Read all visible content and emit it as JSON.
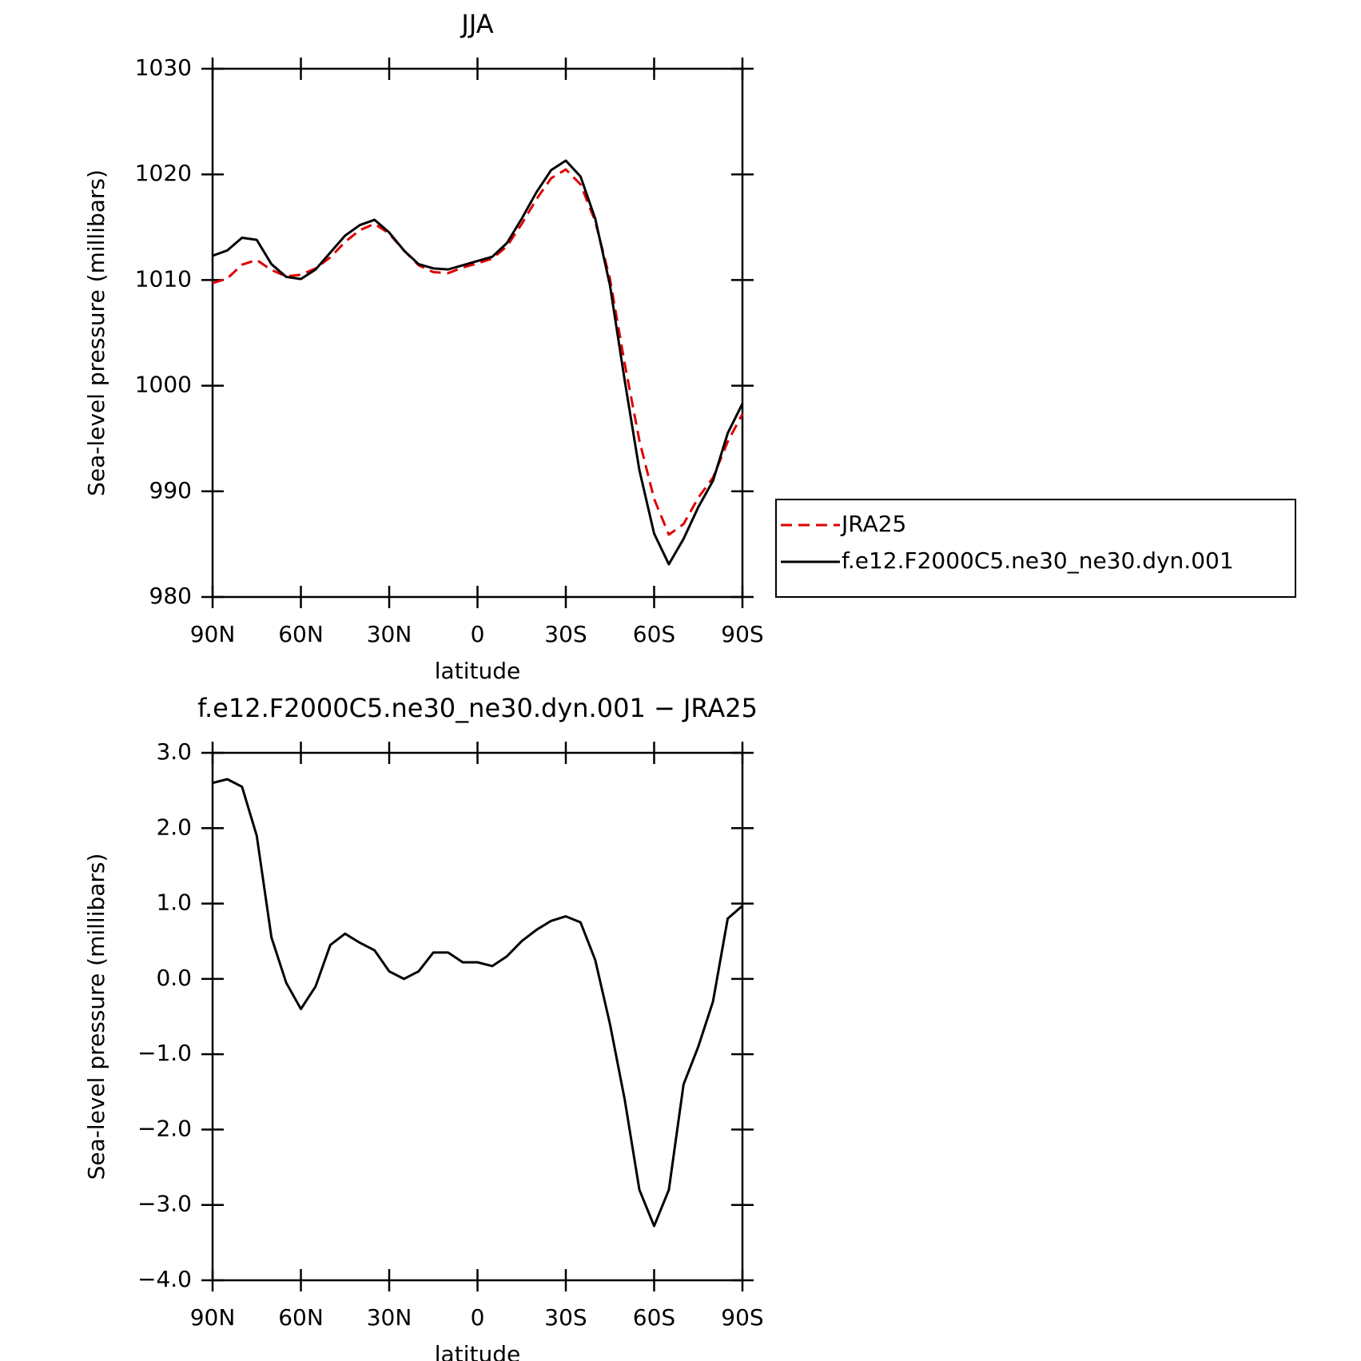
{
  "chart_data": [
    {
      "type": "line",
      "title": "JJA",
      "xlabel": "latitude",
      "ylabel": "Sea-level pressure (millibars)",
      "x": [
        90,
        85,
        80,
        75,
        70,
        65,
        60,
        55,
        50,
        45,
        40,
        35,
        30,
        25,
        20,
        15,
        10,
        5,
        0,
        -5,
        -10,
        -15,
        -20,
        -25,
        -30,
        -35,
        -40,
        -45,
        -50,
        -55,
        -60,
        -65,
        -70,
        -75,
        -80,
        -85,
        -90
      ],
      "xlim": [
        90,
        -90
      ],
      "xticks": [
        {
          "value": 90,
          "label": "90N"
        },
        {
          "value": 60,
          "label": "60N"
        },
        {
          "value": 30,
          "label": "30N"
        },
        0,
        {
          "value": -30,
          "label": "30S"
        },
        {
          "value": -60,
          "label": "60S"
        },
        {
          "value": -90,
          "label": "90S"
        }
      ],
      "ylim": [
        980,
        1030
      ],
      "yticks": [
        980,
        990,
        1000,
        1010,
        1020,
        1030
      ],
      "legend": "right",
      "series": [
        {
          "name": "JRA25",
          "color": "#e00000",
          "style": "dashed",
          "values": [
            1009.7,
            1010.15,
            1011.45,
            1011.9,
            1010.95,
            1010.35,
            1010.5,
            1011.1,
            1012.15,
            1013.6,
            1014.72,
            1015.32,
            1014.4,
            1012.8,
            1011.4,
            1010.75,
            1010.65,
            1011.18,
            1011.58,
            1012.03,
            1013.2,
            1015.3,
            1017.65,
            1019.63,
            1020.47,
            1019.05,
            1015.55,
            1010.1,
            1002.1,
            994.8,
            989.28,
            985.9,
            986.9,
            989.4,
            991.3,
            994.7,
            997.33
          ]
        },
        {
          "name": "f.e12.F2000C5.ne30_ne30.dyn.001",
          "color": "#000000",
          "style": "solid",
          "values": [
            1012.3,
            1012.8,
            1014.0,
            1013.8,
            1011.5,
            1010.3,
            1010.1,
            1011.0,
            1012.6,
            1014.2,
            1015.2,
            1015.7,
            1014.5,
            1012.8,
            1011.5,
            1011.1,
            1011.0,
            1011.4,
            1011.8,
            1012.2,
            1013.5,
            1015.8,
            1018.3,
            1020.4,
            1021.3,
            1019.8,
            1015.8,
            1009.5,
            1000.5,
            992.0,
            986.0,
            983.1,
            985.5,
            988.5,
            991.0,
            995.5,
            998.3
          ]
        }
      ]
    },
    {
      "type": "line",
      "title": "f.e12.F2000C5.ne30_ne30.dyn.001 − JRA25",
      "xlabel": "latitude",
      "ylabel": "Sea-level pressure (millibars)",
      "x": [
        90,
        85,
        80,
        75,
        70,
        65,
        60,
        55,
        50,
        45,
        40,
        35,
        30,
        25,
        20,
        15,
        10,
        5,
        0,
        -5,
        -10,
        -15,
        -20,
        -25,
        -30,
        -35,
        -40,
        -45,
        -50,
        -55,
        -60,
        -65,
        -70,
        -75,
        -80,
        -85,
        -90
      ],
      "xlim": [
        90,
        -90
      ],
      "xticks": [
        {
          "value": 90,
          "label": "90N"
        },
        {
          "value": 60,
          "label": "60N"
        },
        {
          "value": 30,
          "label": "30N"
        },
        0,
        {
          "value": -30,
          "label": "30S"
        },
        {
          "value": -60,
          "label": "60S"
        },
        {
          "value": -90,
          "label": "90S"
        }
      ],
      "ylim": [
        -4,
        3
      ],
      "yticks": [
        {
          "value": -4,
          "label": "−4.0"
        },
        {
          "value": -3,
          "label": "−3.0"
        },
        {
          "value": -2,
          "label": "−2.0"
        },
        {
          "value": -1,
          "label": "−1.0"
        },
        {
          "value": 0,
          "label": "0.0"
        },
        {
          "value": 1,
          "label": "1.0"
        },
        {
          "value": 2,
          "label": "2.0"
        },
        {
          "value": 3,
          "label": "3.0"
        }
      ],
      "color": "#000000",
      "values": [
        2.6,
        2.65,
        2.55,
        1.9,
        0.55,
        -0.05,
        -0.4,
        -0.1,
        0.45,
        0.6,
        0.48,
        0.38,
        0.1,
        0.0,
        0.1,
        0.35,
        0.35,
        0.22,
        0.22,
        0.17,
        0.3,
        0.5,
        0.65,
        0.77,
        0.83,
        0.75,
        0.25,
        -0.6,
        -1.6,
        -2.8,
        -3.28,
        -2.8,
        -1.4,
        -0.9,
        -0.3,
        0.8,
        0.97
      ]
    }
  ]
}
